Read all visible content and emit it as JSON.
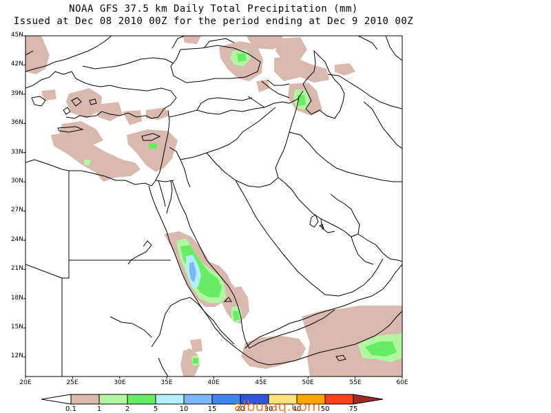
{
  "header": {
    "title_line1": "NOAA GFS 37.5 km Daily Total Precipitation (mm)",
    "title_line2": "Issued at Dec 08 2010 00Z for the period ending at Dec 9 2010 00Z"
  },
  "axes": {
    "latitude_labels": [
      "45N",
      "42N",
      "39N",
      "36N",
      "33N",
      "30N",
      "27N",
      "24N",
      "21N",
      "18N",
      "15N",
      "12N"
    ],
    "longitude_labels": [
      "20E",
      "25E",
      "30E",
      "35E",
      "40E",
      "45E",
      "50E",
      "55E",
      "60E"
    ],
    "lat_range": [
      10,
      45
    ],
    "lon_range": [
      20,
      60
    ]
  },
  "colorbar": {
    "labels": [
      "0.1",
      "1",
      "2",
      "5",
      "10",
      "15",
      "20",
      "30",
      "40",
      "50",
      "75"
    ],
    "colors": [
      "#ffffff",
      "#d9b9ad",
      "#b1f7a1",
      "#66ed64",
      "#b2eef8",
      "#7ab7f4",
      "#3f85ee",
      "#2f55dd",
      "#fce27a",
      "#fda600",
      "#f9421a",
      "#a32a2a"
    ]
  },
  "precip_colors": {
    "light": "#d9b9ad",
    "green_light": "#b1f7a1",
    "green": "#66ed64",
    "cyan": "#b2eef8",
    "blue": "#7ab7f4"
  },
  "watermark": "alburaq.com"
}
